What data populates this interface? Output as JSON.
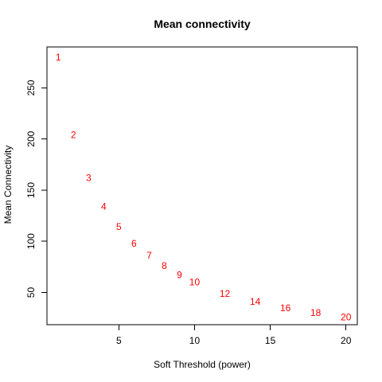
{
  "chart_data": {
    "type": "scatter",
    "title": "Mean connectivity",
    "xlabel": "Soft Threshold (power)",
    "ylabel": "Mean Connectivity",
    "xlim": [
      0.25,
      20.75
    ],
    "ylim": [
      18.5,
      290
    ],
    "x_ticks": [
      5,
      10,
      15,
      20
    ],
    "y_ticks": [
      50,
      100,
      150,
      200,
      250
    ],
    "grid": false,
    "legend": "none",
    "marker": "text-label",
    "point_color": "#ff0000",
    "points": [
      {
        "x": 1,
        "y": 280,
        "label": "1"
      },
      {
        "x": 2,
        "y": 204,
        "label": "2"
      },
      {
        "x": 3,
        "y": 162,
        "label": "3"
      },
      {
        "x": 4,
        "y": 134,
        "label": "4"
      },
      {
        "x": 5,
        "y": 114,
        "label": "5"
      },
      {
        "x": 6,
        "y": 98,
        "label": "6"
      },
      {
        "x": 7,
        "y": 86,
        "label": "7"
      },
      {
        "x": 8,
        "y": 76,
        "label": "8"
      },
      {
        "x": 9,
        "y": 67,
        "label": "9"
      },
      {
        "x": 10,
        "y": 60,
        "label": "10"
      },
      {
        "x": 12,
        "y": 49,
        "label": "12"
      },
      {
        "x": 14,
        "y": 41,
        "label": "14"
      },
      {
        "x": 16,
        "y": 35,
        "label": "16"
      },
      {
        "x": 18,
        "y": 30,
        "label": "18"
      },
      {
        "x": 20,
        "y": 26,
        "label": "20"
      }
    ]
  }
}
